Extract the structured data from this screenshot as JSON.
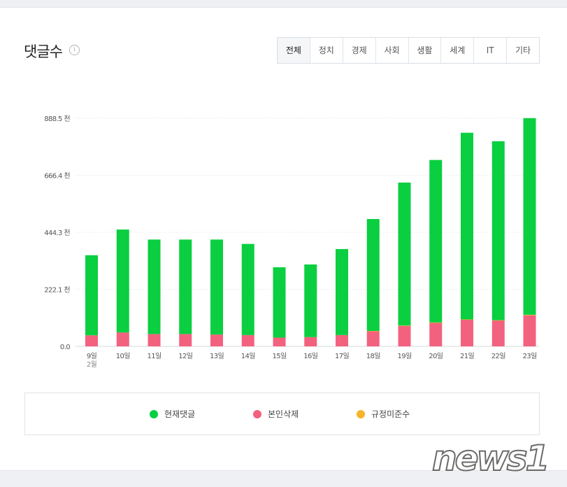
{
  "header": {
    "title": "댓글수",
    "info_icon": "info-icon"
  },
  "tabs": [
    "전체",
    "정치",
    "경제",
    "사회",
    "생활",
    "세계",
    "IT",
    "기타"
  ],
  "legend": {
    "items": [
      {
        "label": "현재댓글",
        "color": "#0acf40"
      },
      {
        "label": "본인삭제",
        "color": "#f2627f"
      },
      {
        "label": "규정미준수",
        "color": "#f7b32b"
      }
    ]
  },
  "watermark": "news1",
  "chart_data": {
    "type": "bar",
    "stacked": true,
    "categories": [
      "9일",
      "10일",
      "11일",
      "12일",
      "13일",
      "14일",
      "15일",
      "16일",
      "17일",
      "18일",
      "19일",
      "20일",
      "21일",
      "22일",
      "23일"
    ],
    "category_sublabel": "2월",
    "y_ticks": [
      "0.0",
      "222.1 천",
      "444.3 천",
      "666.4 천",
      "888.5 천"
    ],
    "ylim": [
      0,
      888.5
    ],
    "unit": "천",
    "grid": true,
    "legend_position": "bottom",
    "series": [
      {
        "name": "본인삭제",
        "color": "#f2627f",
        "values": [
          43,
          54,
          48,
          48,
          46,
          44,
          34,
          36,
          44,
          59,
          80,
          92,
          104,
          101,
          121
        ]
      },
      {
        "name": "규정미준수",
        "color": "#f7b32b",
        "values": [
          0,
          0,
          0,
          0,
          0,
          0,
          0,
          0,
          0,
          1,
          1,
          1,
          1,
          1,
          2
        ]
      },
      {
        "name": "현재댓글",
        "color": "#0acf40",
        "values": [
          312,
          401,
          368,
          368,
          370,
          355,
          274,
          283,
          335,
          436,
          557,
          633,
          727,
          697,
          766
        ]
      }
    ]
  }
}
